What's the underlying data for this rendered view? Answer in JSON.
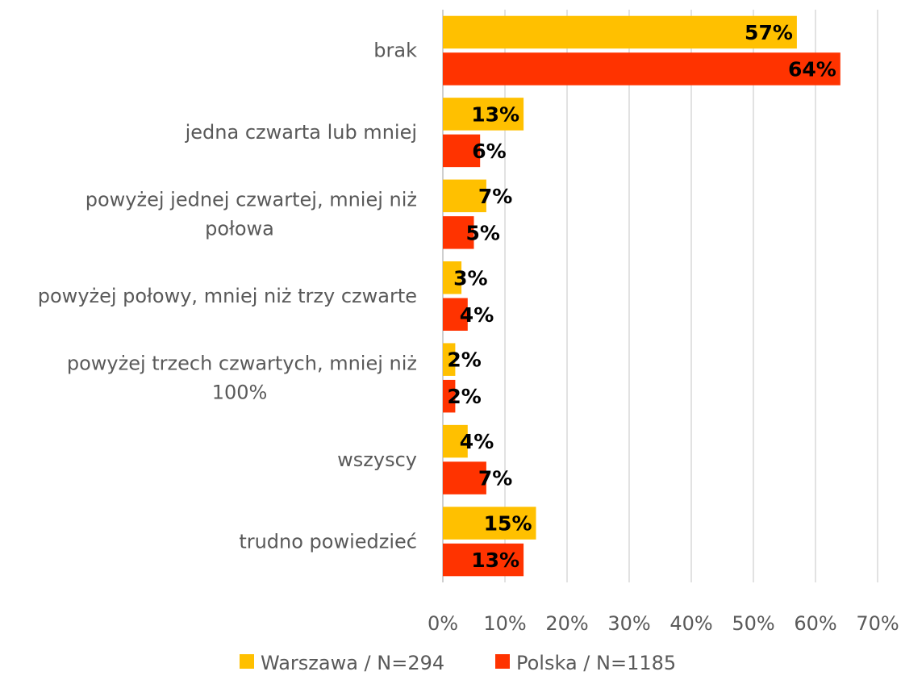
{
  "chart_data": {
    "type": "bar",
    "orientation": "horizontal",
    "categories": [
      [
        "brak"
      ],
      [
        "jedna czwarta lub mniej"
      ],
      [
        "powyżej jednej czwartej, mniej niż",
        "połowa"
      ],
      [
        "powyżej połowy, mniej niż trzy czwarte"
      ],
      [
        "powyżej trzech czwartych, mniej niż",
        "100%"
      ],
      [
        "wszyscy"
      ],
      [
        "trudno powiedzieć"
      ]
    ],
    "series": [
      {
        "name": "Warszawa / N=294",
        "color": "#FFC000",
        "values": [
          57,
          13,
          7,
          3,
          2,
          4,
          15
        ],
        "labels": [
          "57%",
          "13%",
          "7%",
          "3%",
          "2%",
          "4%",
          "15%"
        ]
      },
      {
        "name": "Polska / N=1185",
        "color": "#FF3300",
        "values": [
          64,
          6,
          5,
          4,
          2,
          7,
          13
        ],
        "labels": [
          "64%",
          "6%",
          "5%",
          "4%",
          "2%",
          "7%",
          "13%"
        ]
      }
    ],
    "xlim": [
      0,
      70
    ],
    "xticks": [
      0,
      10,
      20,
      30,
      40,
      50,
      60,
      70
    ],
    "xtick_labels": [
      "0%",
      "10%",
      "20%",
      "30%",
      "40%",
      "50%",
      "60%",
      "70%"
    ],
    "grid": true,
    "legend_position": "bottom"
  }
}
